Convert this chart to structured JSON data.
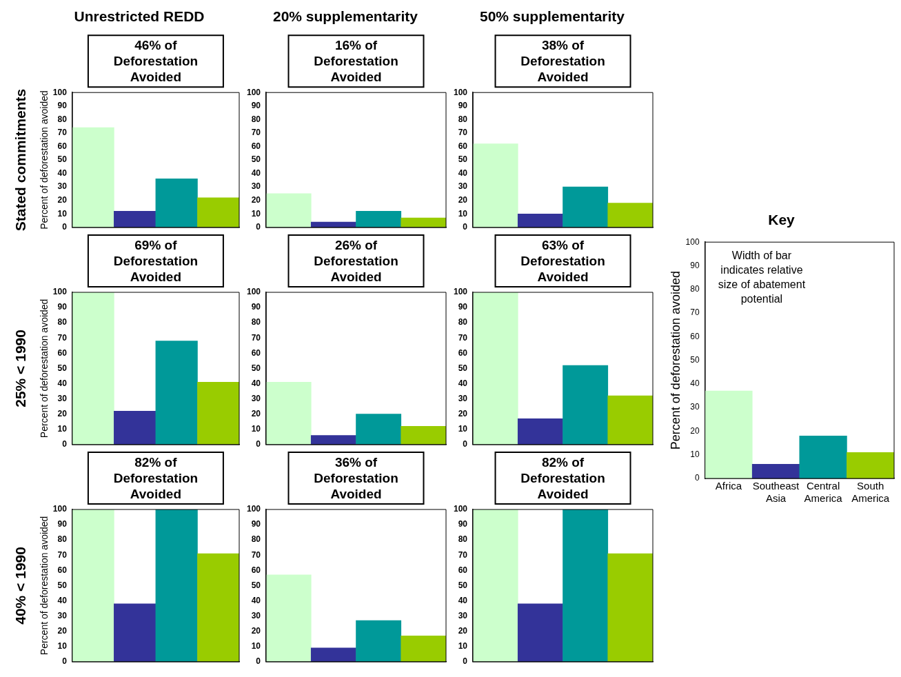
{
  "chart_data": [
    {
      "type": "bar",
      "title": "Unrestricted REDD",
      "subtitle": "Stated commitments",
      "ylabel": "Percent of deforestation avoided",
      "categories": [
        null,
        null,
        null,
        null
      ],
      "values": [
        74,
        12,
        36,
        22
      ],
      "colors": [
        "#ccffcc",
        "#333399",
        "#009999",
        "#99cc00"
      ],
      "ylim": [
        0,
        100
      ],
      "yticks": [
        0,
        10,
        20,
        30,
        40,
        50,
        60,
        70,
        80,
        90,
        100
      ],
      "tick_labels": "y",
      "annotations": [
        "46% of Deforestation Avoided"
      ]
    },
    {
      "type": "bar",
      "title": "20% supplementarity",
      "categories": [
        null,
        null,
        null,
        null
      ],
      "values": [
        25,
        4,
        12,
        7
      ],
      "colors": [
        "#ccffcc",
        "#333399",
        "#009999",
        "#99cc00"
      ],
      "ylim": [
        0,
        100
      ],
      "yticks": [
        0,
        10,
        20,
        30,
        40,
        50,
        60,
        70,
        80,
        90,
        100
      ],
      "tick_labels": "y",
      "annotations": [
        "16% of Deforestation Avoided"
      ]
    },
    {
      "type": "bar",
      "title": "50% supplementarity",
      "categories": [
        null,
        null,
        null,
        null
      ],
      "values": [
        62,
        10,
        30,
        18
      ],
      "colors": [
        "#ccffcc",
        "#333399",
        "#009999",
        "#99cc00"
      ],
      "ylim": [
        0,
        100
      ],
      "yticks": [
        0,
        10,
        20,
        30,
        40,
        50,
        60,
        70,
        80,
        90,
        100
      ],
      "tick_labels": "y",
      "annotations": [
        "38% of Deforestation Avoided"
      ]
    },
    {
      "type": "bar",
      "subtitle": "25% < 1990",
      "ylabel": "Percent of deforestation avoided",
      "categories": [
        null,
        null,
        null,
        null
      ],
      "values": [
        100,
        22,
        68,
        41
      ],
      "colors": [
        "#ccffcc",
        "#333399",
        "#009999",
        "#99cc00"
      ],
      "ylim": [
        0,
        100
      ],
      "yticks": [
        0,
        10,
        20,
        30,
        40,
        50,
        60,
        70,
        80,
        90,
        100
      ],
      "tick_labels": "y",
      "annotations": [
        "69% of Deforestation Avoided"
      ]
    },
    {
      "type": "bar",
      "categories": [
        null,
        null,
        null,
        null
      ],
      "values": [
        41,
        6,
        20,
        12
      ],
      "colors": [
        "#ccffcc",
        "#333399",
        "#009999",
        "#99cc00"
      ],
      "ylim": [
        0,
        100
      ],
      "yticks": [
        0,
        10,
        20,
        30,
        40,
        50,
        60,
        70,
        80,
        90,
        100
      ],
      "tick_labels": "y",
      "annotations": [
        "26% of Deforestation Avoided"
      ]
    },
    {
      "type": "bar",
      "categories": [
        null,
        null,
        null,
        null
      ],
      "values": [
        100,
        17,
        52,
        32
      ],
      "colors": [
        "#ccffcc",
        "#333399",
        "#009999",
        "#99cc00"
      ],
      "ylim": [
        0,
        100
      ],
      "yticks": [
        0,
        10,
        20,
        30,
        40,
        50,
        60,
        70,
        80,
        90,
        100
      ],
      "tick_labels": "y",
      "annotations": [
        "63% of Deforestation Avoided"
      ]
    },
    {
      "type": "bar",
      "subtitle": "40% < 1990",
      "ylabel": "Percent of deforestation avoided",
      "categories": [
        null,
        null,
        null,
        null
      ],
      "values": [
        100,
        38,
        100,
        71
      ],
      "colors": [
        "#ccffcc",
        "#333399",
        "#009999",
        "#99cc00"
      ],
      "ylim": [
        0,
        100
      ],
      "yticks": [
        0,
        10,
        20,
        30,
        40,
        50,
        60,
        70,
        80,
        90,
        100
      ],
      "tick_labels": "y",
      "annotations": [
        "82% of Deforestation Avoided"
      ]
    },
    {
      "type": "bar",
      "categories": [
        null,
        null,
        null,
        null
      ],
      "values": [
        57,
        9,
        27,
        17
      ],
      "colors": [
        "#ccffcc",
        "#333399",
        "#009999",
        "#99cc00"
      ],
      "ylim": [
        0,
        100
      ],
      "yticks": [
        0,
        10,
        20,
        30,
        40,
        50,
        60,
        70,
        80,
        90,
        100
      ],
      "tick_labels": "y",
      "annotations": [
        "36% of Deforestation Avoided"
      ]
    },
    {
      "type": "bar",
      "categories": [
        null,
        null,
        null,
        null
      ],
      "values": [
        100,
        38,
        100,
        71
      ],
      "colors": [
        "#ccffcc",
        "#333399",
        "#009999",
        "#99cc00"
      ],
      "ylim": [
        0,
        100
      ],
      "yticks": [
        0,
        10,
        20,
        30,
        40,
        50,
        60,
        70,
        80,
        90,
        100
      ],
      "tick_labels": "y",
      "annotations": [
        "82% of Deforestation Avoided"
      ]
    },
    {
      "type": "bar",
      "title": "Key",
      "ylabel": "Percent of deforestation avoided",
      "categories": [
        "Africa",
        "Southeast Asia",
        "Central America",
        "South America"
      ],
      "values": [
        37,
        6,
        18,
        11
      ],
      "colors": [
        "#ccffcc",
        "#333399",
        "#009999",
        "#99cc00"
      ],
      "ylim": [
        0,
        100
      ],
      "yticks": [
        0,
        10,
        20,
        30,
        40,
        50,
        60,
        70,
        80,
        90,
        100
      ],
      "annotations": [
        "Width of bar indicates relative size of abatement potential"
      ]
    }
  ]
}
